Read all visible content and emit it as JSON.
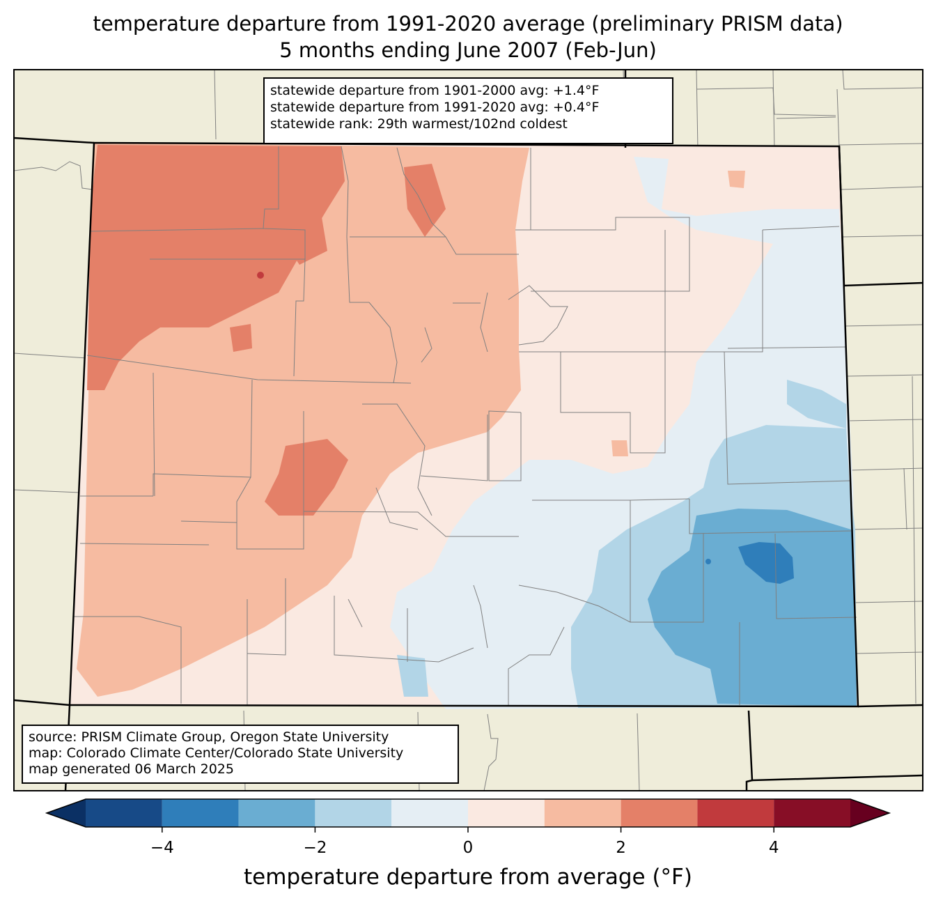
{
  "title": {
    "line1": "temperature departure from 1991-2020 average (preliminary PRISM data)",
    "line2": "5 months ending June 2007 (Feb-Jun)"
  },
  "stats_box": {
    "line1": "statewide departure from 1901-2000 avg: +1.4°F",
    "line2": "statewide departure from 1991-2020 avg: +0.4°F",
    "line3": "statewide rank: 29th warmest/102nd coldest"
  },
  "source_box": {
    "line1": "source: PRISM Climate Group, Oregon State University",
    "line2": "map: Colorado Climate Center/Colorado State University",
    "line3": "map generated 06 March 2025"
  },
  "colorbar": {
    "label": "temperature departure from average (°F)",
    "bins": [
      {
        "min": -5,
        "max": -4,
        "color": "#174a87"
      },
      {
        "min": -4,
        "max": -3,
        "color": "#2f7eba"
      },
      {
        "min": -3,
        "max": -2,
        "color": "#6aadd2"
      },
      {
        "min": -2,
        "max": -1,
        "color": "#b2d5e7"
      },
      {
        "min": -1,
        "max": 0,
        "color": "#e5eef4"
      },
      {
        "min": 0,
        "max": 1,
        "color": "#fae9e1"
      },
      {
        "min": 1,
        "max": 2,
        "color": "#f6bba1"
      },
      {
        "min": 2,
        "max": 3,
        "color": "#e48068"
      },
      {
        "min": 3,
        "max": 4,
        "color": "#c13a3d"
      },
      {
        "min": 4,
        "max": 5,
        "color": "#870e26"
      }
    ],
    "under_color": "#0b3064",
    "over_color": "#67001f",
    "ticks": [
      "−4",
      "−2",
      "0",
      "2",
      "4"
    ],
    "range": [
      -5,
      5
    ]
  },
  "colors": {
    "land_outside": "#efedda",
    "state_border": "#000000",
    "county_border": "#7f7f7f"
  }
}
